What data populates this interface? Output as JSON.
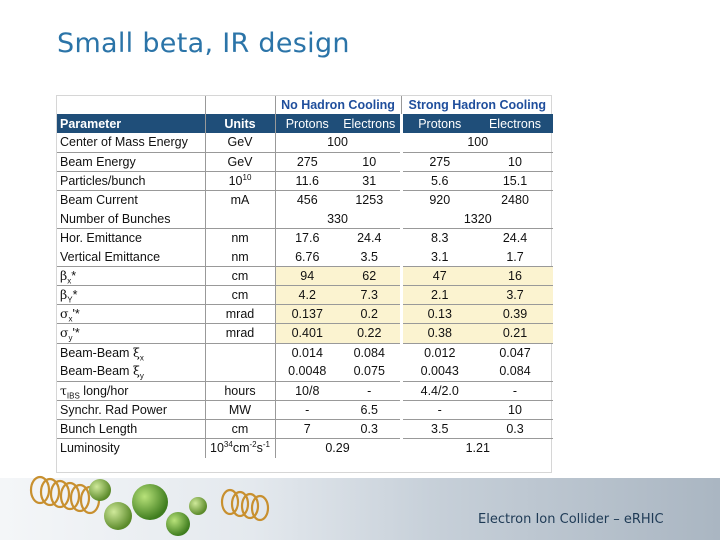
{
  "slide": {
    "title": "Small beta, IR design",
    "footer": "Electron Ion Collider – eRHIC"
  },
  "table": {
    "group_no_hadron": "No Hadron Cooling",
    "group_strong_hadron": "Strong Hadron Cooling",
    "header": {
      "parameter": "Parameter",
      "units": "Units",
      "protons": "Protons",
      "electrons": "Electrons"
    },
    "rows": [
      {
        "p": "Center of Mass  Energy",
        "u": "GeV",
        "shared1": "100",
        "shared2": "100"
      },
      {
        "p": "Beam Energy",
        "u": "GeV",
        "v": [
          "275",
          "10",
          "275",
          "10"
        ]
      },
      {
        "p": "Particles/bunch",
        "u_base": "10",
        "u_exp": "10",
        "v": [
          "11.6",
          "31",
          "5.6",
          "15.1"
        ]
      },
      {
        "p": "Beam Current",
        "u": "mA",
        "v": [
          "456",
          "1253",
          "920",
          "2480"
        ]
      },
      {
        "p": "Number of Bunches",
        "u": "",
        "shared1": "330",
        "shared2": "1320"
      },
      {
        "p": "Hor. Emittance",
        "u": "nm",
        "v": [
          "17.6",
          "24.4",
          "8.3",
          "24.4"
        ]
      },
      {
        "p": "Vertical Emittance",
        "u": "nm",
        "v": [
          "6.76",
          "3.5",
          "3.1",
          "1.7"
        ]
      },
      {
        "p_sym": "β",
        "p_sub": "x",
        "p_tail": "*",
        "u": "cm",
        "v": [
          "94",
          "62",
          "47",
          "16"
        ]
      },
      {
        "p_sym": "β",
        "p_sub": "Y",
        "p_tail": "*",
        "u": "cm",
        "v": [
          "4.2",
          "7.3",
          "2.1",
          "3.7"
        ]
      },
      {
        "p_sym": "σ",
        "p_sub": "x",
        "p_tail": "'*",
        "u": "mrad",
        "v": [
          "0.137",
          "0.2",
          "0.13",
          "0.39"
        ]
      },
      {
        "p_sym": "σ",
        "p_sub": "y",
        "p_tail": "'*",
        "u": "mrad",
        "v": [
          "0.401",
          "0.22",
          "0.38",
          "0.21"
        ]
      },
      {
        "p": "Beam-Beam ",
        "p_sym": "ξ",
        "p_sub": "x",
        "u": "",
        "v": [
          "0.014",
          "0.084",
          "0.012",
          "0.047"
        ]
      },
      {
        "p": "Beam-Beam ",
        "p_sym": "ξ",
        "p_sub": "y",
        "u": "",
        "v": [
          "0.0048",
          "0.075",
          "0.0043",
          "0.084"
        ]
      },
      {
        "p_sym": "τ",
        "p_sub": "IBS",
        "p_tail": " long/hor",
        "u": "hours",
        "v": [
          "10/8",
          "-",
          "4.4/2.0",
          "-"
        ]
      },
      {
        "p": "Synchr. Rad Power",
        "u": "MW",
        "v": [
          "-",
          "6.5",
          "-",
          "10"
        ]
      },
      {
        "p": "Bunch Length",
        "u": "cm",
        "v": [
          "7",
          "0.3",
          "3.5",
          "0.3"
        ]
      },
      {
        "p": "Luminosity",
        "u_lum": [
          "10",
          "34",
          "cm",
          "-2",
          "s",
          "-1"
        ],
        "shared1": "0.29",
        "shared2": "1.21"
      }
    ]
  },
  "colors": {
    "title": "#2b74a8",
    "header_bg": "#1f4e79",
    "group_label": "#1f4e9c",
    "highlight": "#fbf3d0"
  }
}
